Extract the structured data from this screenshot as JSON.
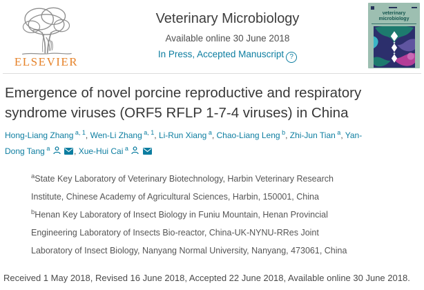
{
  "header": {
    "elsevier_wordmark": "ELSEVIER",
    "journal_title": "Veterinary Microbiology",
    "available_online": "Available online 30 June 2018",
    "status_link": "In Press, Accepted Manuscript",
    "help_icon_glyph": "?"
  },
  "cover": {
    "title": "veterinary microbiology"
  },
  "article": {
    "title": "Emergence of novel porcine reproductive and respiratory syndrome viruses (ORF5 RFLP 1-7-4 viruses) in China"
  },
  "authors": [
    {
      "name": "Hong-Liang Zhang",
      "sup": "a, 1",
      "icons": []
    },
    {
      "name": "Wen-Li Zhang",
      "sup": "a, 1",
      "icons": []
    },
    {
      "name": "Li-Run Xiang",
      "sup": "a",
      "icons": []
    },
    {
      "name": "Chao-Liang Leng",
      "sup": "b",
      "icons": []
    },
    {
      "name": "Zhi-Jun Tian",
      "sup": "a",
      "icons": []
    },
    {
      "name": "Yan-Dong Tang",
      "sup": "a",
      "icons": [
        "person-icon",
        "envelope-icon"
      ]
    },
    {
      "name": "Xue-Hui Cai",
      "sup": "a",
      "icons": [
        "person-icon",
        "envelope-icon"
      ]
    }
  ],
  "affiliations": [
    {
      "sup": "a",
      "text": "State Key Laboratory of Veterinary Biotechnology, Harbin Veterinary Research Institute, Chinese Academy of Agricultural Sciences, Harbin, 150001, China"
    },
    {
      "sup": "b",
      "text": "Henan Key Laboratory of Insect Biology in Funiu Mountain, Henan Provincial Engineering Laboratory of Insects Bio-reactor, China-UK-NYNU-RRes Joint Laboratory of Insect Biology, Nanyang Normal University, Nanyang, 473061, China"
    }
  ],
  "dates": {
    "text": "Received 1 May 2018, Revised 16 June 2018, Accepted 22 June 2018, Available online 30 June 2018."
  },
  "colors": {
    "link_teal": "#0c7da0",
    "elsevier_orange": "#e6832a",
    "title_grey": "#383838",
    "body_grey": "#555555",
    "cover_background": "#9dbfb1",
    "cover_title_teal": "#14554f",
    "cover_art_navy": "#2c2f6c",
    "cover_art_teal": "#1d7a6e",
    "cover_art_cyan": "#3ab5c6",
    "cover_art_purple": "#5f55a0",
    "cover_art_magenta": "#b43e97"
  }
}
